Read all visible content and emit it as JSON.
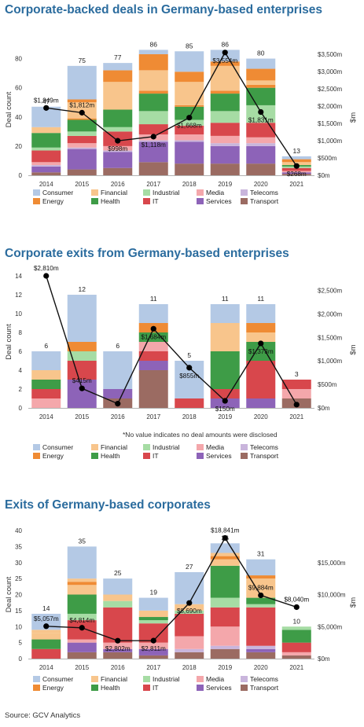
{
  "source": "Source: GCV Analytics",
  "note": "*No value indicates no deal amounts were disclosed",
  "category_colors": {
    "Consumer": "#b4c9e5",
    "Financial": "#f8c58c",
    "Industrial": "#a6dca4",
    "Media": "#f4a7ab",
    "Telecoms": "#c9b5dc",
    "Energy": "#ef8b34",
    "Health": "#3e9c47",
    "IT": "#d8474c",
    "Services": "#8d63b8",
    "Transport": "#9b6b62"
  },
  "legend_order": [
    "Consumer",
    "Financial",
    "Industrial",
    "Media",
    "Telecoms",
    "Energy",
    "Health",
    "IT",
    "Services",
    "Transport"
  ],
  "chart_data": [
    {
      "type": "bar",
      "title": "Corporate-backed deals in Germany-based enterprises",
      "stacked": true,
      "categories": [
        "2014",
        "2015",
        "2016",
        "2017",
        "2018",
        "2019",
        "2020",
        "2021"
      ],
      "totals": [
        47,
        75,
        77,
        86,
        85,
        86,
        80,
        13
      ],
      "ylabel": "Deal count",
      "ylim": [
        0,
        90
      ],
      "yticks": [
        0,
        20,
        40,
        60,
        80
      ],
      "y2label": "$m",
      "y2lim": [
        0,
        3800
      ],
      "y2ticks": [
        "$0m",
        "$500m",
        "$1,000m",
        "$1,500m",
        "$2,000m",
        "$2,500m",
        "$3,000m",
        "$3,500m"
      ],
      "y2tickvalues": [
        0,
        500,
        1000,
        1500,
        2000,
        2500,
        3000,
        3500
      ],
      "series": [
        {
          "name": "Transport",
          "values": [
            2,
            4,
            5,
            9,
            8,
            8,
            8,
            1
          ]
        },
        {
          "name": "Services",
          "values": [
            4,
            14,
            11,
            14,
            15,
            12,
            12,
            1
          ]
        },
        {
          "name": "Telecoms",
          "values": [
            1,
            1,
            1,
            1,
            1,
            2,
            2,
            0
          ]
        },
        {
          "name": "Media",
          "values": [
            2,
            3,
            3,
            4,
            4,
            5,
            4,
            1
          ]
        },
        {
          "name": "IT",
          "values": [
            8,
            5,
            10,
            7,
            6,
            9,
            10,
            2
          ]
        },
        {
          "name": "Industrial",
          "values": [
            2,
            3,
            3,
            9,
            4,
            8,
            12,
            1
          ]
        },
        {
          "name": "Health",
          "values": [
            10,
            8,
            12,
            12,
            9,
            12,
            12,
            1
          ]
        },
        {
          "name": "Energy",
          "values": [
            0,
            1,
            0,
            2,
            1,
            2,
            2,
            0
          ]
        },
        {
          "name": "Financial",
          "values": [
            4,
            11,
            19,
            14,
            16,
            17,
            3,
            2
          ]
        },
        {
          "name": "Energy",
          "values": [
            0,
            2,
            8,
            11,
            7,
            3,
            8,
            2
          ]
        },
        {
          "name": "Consumer",
          "values": [
            14,
            23,
            5,
            3,
            14,
            8,
            7,
            2
          ]
        }
      ],
      "line": {
        "values": [
          1949,
          1812,
          998,
          1118,
          1668,
          3554,
          1831,
          268
        ],
        "labels": [
          "$1,949m",
          "$1,812m",
          "$998m",
          "$1,118m",
          "$1,668m",
          "$3,554m",
          "$1,831m",
          "$268m"
        ]
      }
    },
    {
      "type": "bar",
      "title": "Corporate exits from Germany-based enterprises",
      "stacked": true,
      "categories": [
        "2014",
        "2015",
        "2016",
        "2017",
        "2018",
        "2019",
        "2020",
        "2021"
      ],
      "totals": [
        6,
        12,
        6,
        11,
        5,
        11,
        11,
        3
      ],
      "ylabel": "Deal count",
      "ylim": [
        0,
        14
      ],
      "yticks": [
        0,
        2,
        4,
        6,
        8,
        10,
        12,
        14
      ],
      "y2label": "$m",
      "y2lim": [
        0,
        2810
      ],
      "y2ticks": [
        "$0m",
        "$500m",
        "$1,000m",
        "$1,500m",
        "$2,000m",
        "$2,500m"
      ],
      "y2tickvalues": [
        0,
        500,
        1000,
        1500,
        2000,
        2500
      ],
      "series": [
        {
          "name": "Transport",
          "values": [
            0,
            0,
            1,
            4,
            0,
            0,
            0,
            1
          ]
        },
        {
          "name": "Media",
          "values": [
            1,
            0,
            0,
            0,
            0,
            0,
            0,
            1
          ]
        },
        {
          "name": "Services",
          "values": [
            0,
            3,
            1,
            1,
            0,
            1,
            1,
            0
          ]
        },
        {
          "name": "IT",
          "values": [
            1,
            2,
            0,
            1,
            1,
            1,
            4,
            1
          ]
        },
        {
          "name": "Media",
          "values": [
            0,
            0,
            0,
            1,
            0,
            0,
            0,
            0
          ]
        },
        {
          "name": "Health",
          "values": [
            1,
            0,
            0,
            1,
            0,
            4,
            2,
            0
          ]
        },
        {
          "name": "Industrial",
          "values": [
            0,
            1,
            0,
            0,
            0,
            0,
            0,
            0
          ]
        },
        {
          "name": "Financial",
          "values": [
            1,
            0,
            0,
            0,
            0,
            3,
            1,
            0
          ]
        },
        {
          "name": "Energy",
          "values": [
            0,
            1,
            0,
            1,
            0,
            0,
            1,
            0
          ]
        },
        {
          "name": "Consumer",
          "values": [
            2,
            5,
            4,
            2,
            4,
            2,
            2,
            0
          ]
        }
      ],
      "line": {
        "values": [
          2810,
          415,
          90,
          1684,
          855,
          150,
          1373,
          70
        ],
        "labels": [
          "$2,810m",
          "$415m",
          "",
          "$1,684m",
          "$855m",
          "$150m",
          "$1,373m",
          ""
        ]
      }
    },
    {
      "type": "bar",
      "title": "Exits of Germany-based corporates",
      "stacked": true,
      "categories": [
        "2014",
        "2015",
        "2016",
        "2017",
        "2018",
        "2019",
        "2020",
        "2021"
      ],
      "totals": [
        14,
        35,
        25,
        19,
        27,
        36,
        31,
        10
      ],
      "ylabel": "Deal count",
      "ylim": [
        0,
        40
      ],
      "yticks": [
        0,
        5,
        10,
        15,
        20,
        25,
        30,
        35,
        40
      ],
      "y2label": "$m",
      "y2lim": [
        0,
        20000
      ],
      "y2ticks": [
        "$0m",
        "$5,000m",
        "$10,000m",
        "$15,000m"
      ],
      "y2tickvalues": [
        0,
        5000,
        10000,
        15000
      ],
      "series": [
        {
          "name": "Transport",
          "values": [
            0,
            2,
            2,
            1,
            2,
            3,
            2,
            1
          ]
        },
        {
          "name": "Services",
          "values": [
            0,
            3,
            1,
            2,
            0,
            0,
            1,
            0
          ]
        },
        {
          "name": "Telecoms",
          "values": [
            0,
            0,
            0,
            0,
            1,
            1,
            1,
            0
          ]
        },
        {
          "name": "Media",
          "values": [
            0,
            1,
            2,
            2,
            4,
            6,
            0,
            1
          ]
        },
        {
          "name": "IT",
          "values": [
            3,
            6,
            11,
            6,
            7,
            6,
            12,
            3
          ]
        },
        {
          "name": "Industrial",
          "values": [
            0,
            2,
            2,
            1,
            1,
            3,
            1,
            0
          ]
        },
        {
          "name": "Health",
          "values": [
            3,
            6,
            0,
            1,
            0,
            10,
            2,
            4
          ]
        },
        {
          "name": "Industrial",
          "values": [
            0,
            0,
            0,
            0,
            0,
            0,
            0,
            1
          ]
        },
        {
          "name": "Financial",
          "values": [
            2,
            3,
            2,
            2,
            2,
            2,
            6,
            0
          ]
        },
        {
          "name": "Energy",
          "values": [
            0,
            1,
            0,
            0,
            0,
            1,
            1,
            0
          ]
        },
        {
          "name": "Financial",
          "values": [
            1,
            1,
            0,
            0,
            0,
            1,
            0,
            0
          ]
        },
        {
          "name": "Consumer",
          "values": [
            5,
            10,
            5,
            4,
            10,
            3,
            5,
            0
          ]
        }
      ],
      "line": {
        "values": [
          5057,
          4814,
          2802,
          2811,
          8690,
          18841,
          9884,
          8040
        ],
        "labels": [
          "$5,057m",
          "$4,814m",
          "$2,802m",
          "$2,811m",
          "$8,690m",
          "$18,841m",
          "$9,884m",
          "$8,040m"
        ]
      }
    }
  ]
}
